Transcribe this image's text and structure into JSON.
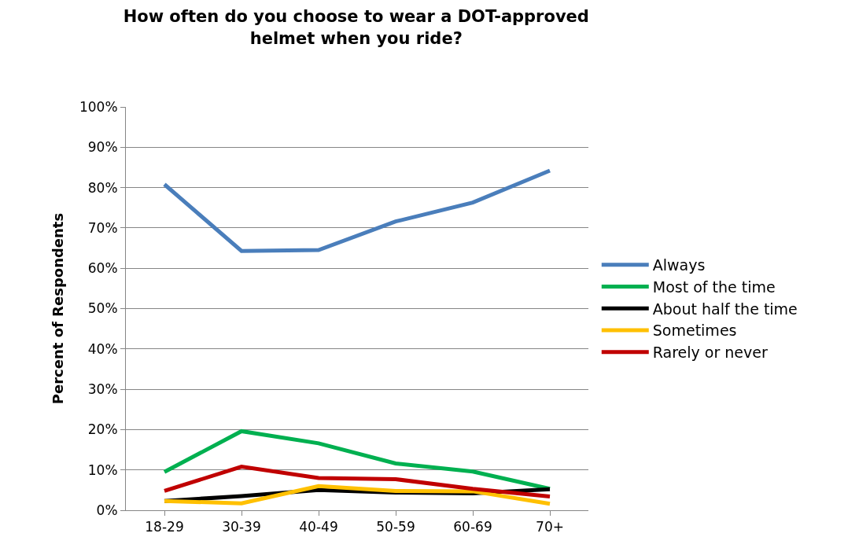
{
  "chart_data": {
    "type": "line",
    "title": "How often do you choose to wear a DOT-approved helmet when you ride?",
    "ylabel": "Percent of Respondents",
    "categories": [
      "18-29",
      "30-39",
      "40-49",
      "50-59",
      "60-69",
      "70+"
    ],
    "series": [
      {
        "name": "Always",
        "color": "#4a7ebb",
        "values": [
          80.8,
          64.3,
          64.5,
          71.6,
          76.3,
          84.2
        ]
      },
      {
        "name": "Most of the time",
        "color": "#00b050",
        "values": [
          9.5,
          19.6,
          16.6,
          11.6,
          9.6,
          5.3
        ]
      },
      {
        "name": "About half the time",
        "color": "#000000",
        "values": [
          2.3,
          3.5,
          5.0,
          4.4,
          4.2,
          5.2
        ]
      },
      {
        "name": "Sometimes",
        "color": "#ffc000",
        "values": [
          2.3,
          1.7,
          6.0,
          4.8,
          4.7,
          1.6
        ]
      },
      {
        "name": "Rarely or never",
        "color": "#c00000",
        "values": [
          4.8,
          10.8,
          8.0,
          7.7,
          5.3,
          3.4
        ]
      }
    ],
    "ylim": [
      0,
      100
    ],
    "yticks": [
      {
        "value": 0,
        "label": "0%"
      },
      {
        "value": 10,
        "label": "10%"
      },
      {
        "value": 20,
        "label": "20%"
      },
      {
        "value": 30,
        "label": "30%"
      },
      {
        "value": 40,
        "label": "40%"
      },
      {
        "value": 50,
        "label": "50%"
      },
      {
        "value": 60,
        "label": "60%"
      },
      {
        "value": 70,
        "label": "70%"
      },
      {
        "value": 80,
        "label": "80%"
      },
      {
        "value": 90,
        "label": "90%"
      },
      {
        "value": 100,
        "label": "100%"
      }
    ],
    "grid": "y",
    "legend": "right",
    "marker": "none",
    "line_style": "solid"
  }
}
